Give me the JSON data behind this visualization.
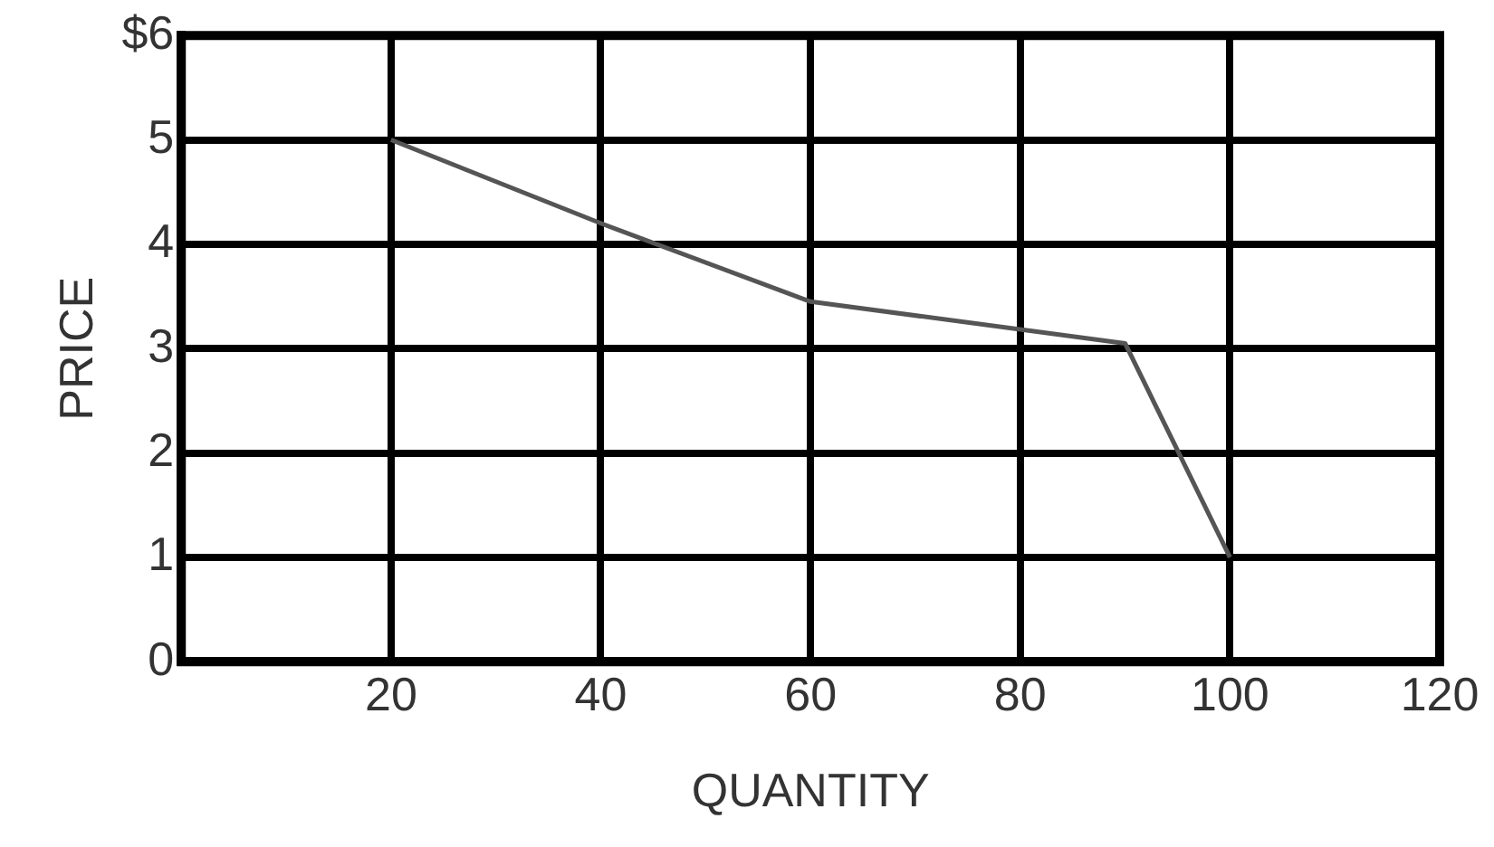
{
  "chart_data": {
    "type": "line",
    "xlabel": "QUANTITY",
    "ylabel": "PRICE",
    "x": [
      20,
      40,
      60,
      90,
      100
    ],
    "series": [
      {
        "color": "#555555",
        "values": [
          5,
          4.2,
          3.45,
          3.05,
          1
        ]
      }
    ],
    "xlim": [
      0,
      120
    ],
    "xticks": [
      {
        "value": 0,
        "label": null
      },
      20,
      40,
      60,
      80,
      100,
      120
    ],
    "ylim": [
      0,
      6
    ],
    "yticks": [
      0,
      1,
      2,
      3,
      4,
      5,
      {
        "value": 6,
        "label": "$6"
      }
    ],
    "grid": true,
    "legend": false,
    "marker": "none",
    "line_style": "solid"
  }
}
